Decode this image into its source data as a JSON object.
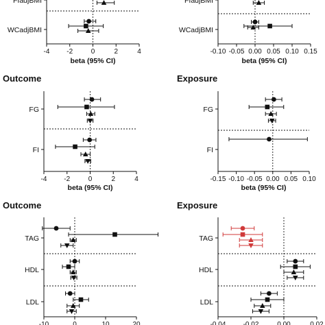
{
  "chart_data": [
    {
      "type": "forest",
      "title": "",
      "xlabel": "beta (95% CI)",
      "xlim": [
        -4,
        4
      ],
      "ticks": [
        -4,
        -2,
        0,
        2,
        4
      ],
      "categories": [
        "FIadjBMI",
        "WCadjBMI"
      ],
      "series": [
        {
          "category": "FIadjBMI",
          "est": 0.95,
          "lo": 0.35,
          "hi": 1.85,
          "shape": "triangle"
        },
        {
          "category": "WCadjBMI",
          "est": -0.35,
          "lo": -0.75,
          "hi": 0.25,
          "shape": "circle"
        },
        {
          "category": "WCadjBMI",
          "est": -0.6,
          "lo": -2.1,
          "hi": 0.9,
          "shape": "square"
        },
        {
          "category": "WCadjBMI",
          "est": -0.4,
          "lo": -1.3,
          "hi": 0.5,
          "shape": "triangle"
        }
      ]
    },
    {
      "type": "forest",
      "title": "",
      "xlabel": "beta (95% CI)",
      "xlim": [
        -0.1,
        0.15
      ],
      "ticks": [
        -0.1,
        -0.05,
        0,
        0.05,
        0.1,
        0.15
      ],
      "tick_labels": [
        "-0.10",
        "-0.05",
        "0.00",
        "0.05",
        "0.10",
        "0.15"
      ],
      "categories": [
        "FIadjBMI",
        "WCadjBMI"
      ],
      "series": [
        {
          "category": "FIadjBMI",
          "est": 0.01,
          "lo": -0.005,
          "hi": 0.025,
          "shape": "triangle"
        },
        {
          "category": "WCadjBMI",
          "est": 0.0,
          "lo": -0.01,
          "hi": 0.01,
          "shape": "circle"
        },
        {
          "category": "WCadjBMI",
          "est": 0.04,
          "lo": -0.03,
          "hi": 0.1,
          "shape": "square"
        },
        {
          "category": "WCadjBMI",
          "est": -0.005,
          "lo": -0.02,
          "hi": 0.01,
          "shape": "triangle"
        }
      ]
    },
    {
      "type": "forest",
      "title": "Outcome",
      "xlabel": "beta (95% CI)",
      "xlim": [
        -4,
        4
      ],
      "ticks": [
        -4,
        -2,
        0,
        2,
        4
      ],
      "categories": [
        "FG",
        "FI"
      ],
      "series": [
        {
          "category": "FG",
          "est": 0.15,
          "lo": -0.5,
          "hi": 0.9,
          "shape": "circle"
        },
        {
          "category": "FG",
          "est": -0.3,
          "lo": -2.8,
          "hi": 2.1,
          "shape": "square"
        },
        {
          "category": "FG",
          "est": 0.05,
          "lo": -0.3,
          "hi": 0.4,
          "shape": "triangle"
        },
        {
          "category": "FG",
          "est": 0.0,
          "lo": -0.25,
          "hi": 0.25,
          "shape": "invtriangle"
        },
        {
          "category": "FI",
          "est": -0.05,
          "lo": -0.6,
          "hi": 0.5,
          "shape": "circle"
        },
        {
          "category": "FI",
          "est": -1.3,
          "lo": -3.0,
          "hi": 0.4,
          "shape": "square"
        },
        {
          "category": "FI",
          "est": -0.4,
          "lo": -0.8,
          "hi": 0.0,
          "shape": "triangle"
        },
        {
          "category": "FI",
          "est": -0.2,
          "lo": -0.45,
          "hi": 0.05,
          "shape": "invtriangle"
        }
      ]
    },
    {
      "type": "forest",
      "title": "Exposure",
      "xlabel": "beta (95% CI)",
      "xlim": [
        -0.15,
        0.1
      ],
      "ticks": [
        -0.15,
        -0.1,
        -0.05,
        0,
        0.05,
        0.1
      ],
      "tick_labels": [
        "-0.15",
        "-0.10",
        "-0.05",
        "0.00",
        "0.05",
        "0.10"
      ],
      "categories": [
        "FG",
        "FI"
      ],
      "series": [
        {
          "category": "FG",
          "est": 0.003,
          "lo": -0.02,
          "hi": 0.025,
          "shape": "circle"
        },
        {
          "category": "FG",
          "est": -0.015,
          "lo": -0.065,
          "hi": 0.03,
          "shape": "square"
        },
        {
          "category": "FG",
          "est": -0.005,
          "lo": -0.02,
          "hi": 0.01,
          "shape": "triangle"
        },
        {
          "category": "FG",
          "est": -0.002,
          "lo": -0.012,
          "hi": 0.008,
          "shape": "invtriangle"
        },
        {
          "category": "FI",
          "est": -0.01,
          "lo": -0.12,
          "hi": 0.095,
          "shape": "circle"
        }
      ]
    },
    {
      "type": "forest",
      "title": "Outcome",
      "xlabel": "",
      "xlim": [
        -10,
        20
      ],
      "ticks": [
        -10,
        0,
        10,
        20
      ],
      "categories": [
        "TAG",
        "HDL",
        "LDL"
      ],
      "series": [
        {
          "category": "TAG",
          "est": -6.0,
          "lo": -10.5,
          "hi": -1.5,
          "shape": "circle"
        },
        {
          "category": "TAG",
          "est": 13.0,
          "lo": -2.0,
          "hi": 27.0,
          "shape": "square"
        },
        {
          "category": "TAG",
          "est": -0.5,
          "lo": -1.5,
          "hi": 0.5,
          "shape": "triangle"
        },
        {
          "category": "TAG",
          "est": -2.5,
          "lo": -4.5,
          "hi": -0.5,
          "shape": "invtriangle"
        },
        {
          "category": "HDL",
          "est": 0.0,
          "lo": -1.5,
          "hi": 1.5,
          "shape": "circle"
        },
        {
          "category": "HDL",
          "est": -2.0,
          "lo": -4.0,
          "hi": 0.0,
          "shape": "square"
        },
        {
          "category": "HDL",
          "est": -0.5,
          "lo": -1.5,
          "hi": 0.5,
          "shape": "triangle"
        },
        {
          "category": "HDL",
          "est": -0.3,
          "lo": -1.3,
          "hi": 0.7,
          "shape": "invtriangle"
        },
        {
          "category": "LDL",
          "est": -1.5,
          "lo": -3.0,
          "hi": 0.0,
          "shape": "circle"
        },
        {
          "category": "LDL",
          "est": 2.0,
          "lo": -0.5,
          "hi": 4.5,
          "shape": "square"
        },
        {
          "category": "LDL",
          "est": -0.5,
          "lo": -2.5,
          "hi": 1.5,
          "shape": "triangle"
        },
        {
          "category": "LDL",
          "est": -1.0,
          "lo": -2.5,
          "hi": 0.5,
          "shape": "invtriangle"
        }
      ]
    },
    {
      "type": "forest",
      "title": "Exposure",
      "xlabel": "",
      "xlim": [
        -0.04,
        0.02
      ],
      "ticks": [
        -0.04,
        -0.02,
        0,
        0.02
      ],
      "tick_labels": [
        "-0.04",
        "-0.02",
        "0.00",
        "0.02"
      ],
      "categories": [
        "TAG",
        "HDL",
        "LDL"
      ],
      "series": [
        {
          "category": "TAG",
          "est": -0.025,
          "lo": -0.032,
          "hi": -0.018,
          "shape": "circle",
          "color": "#d03a3a"
        },
        {
          "category": "TAG",
          "est": -0.025,
          "lo": -0.037,
          "hi": -0.013,
          "shape": "square",
          "color": "#d03a3a"
        },
        {
          "category": "TAG",
          "est": -0.02,
          "lo": -0.027,
          "hi": -0.013,
          "shape": "triangle",
          "color": "#d03a3a"
        },
        {
          "category": "TAG",
          "est": -0.02,
          "lo": -0.027,
          "hi": -0.013,
          "shape": "invtriangle",
          "color": "#d03a3a"
        },
        {
          "category": "HDL",
          "est": 0.007,
          "lo": 0.002,
          "hi": 0.012,
          "shape": "circle"
        },
        {
          "category": "HDL",
          "est": 0.007,
          "lo": -0.002,
          "hi": 0.016,
          "shape": "square"
        },
        {
          "category": "HDL",
          "est": 0.006,
          "lo": 0.0,
          "hi": 0.012,
          "shape": "triangle"
        },
        {
          "category": "HDL",
          "est": 0.007,
          "lo": 0.002,
          "hi": 0.012,
          "shape": "invtriangle"
        },
        {
          "category": "LDL",
          "est": -0.009,
          "lo": -0.014,
          "hi": -0.004,
          "shape": "circle"
        },
        {
          "category": "LDL",
          "est": -0.01,
          "lo": -0.02,
          "hi": 0.0,
          "shape": "square"
        },
        {
          "category": "LDL",
          "est": -0.013,
          "lo": -0.018,
          "hi": -0.008,
          "shape": "triangle"
        },
        {
          "category": "LDL",
          "est": -0.014,
          "lo": -0.019,
          "hi": -0.009,
          "shape": "invtriangle"
        }
      ]
    }
  ],
  "colors": {
    "default_marker": "#111111",
    "highlight": "#d03a3a"
  }
}
